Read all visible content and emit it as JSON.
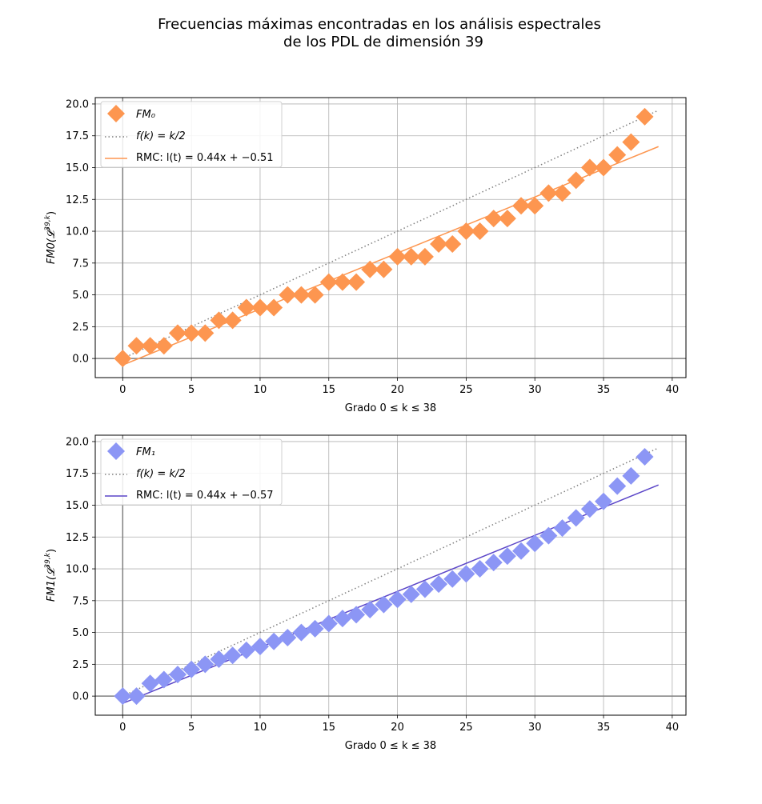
{
  "figure": {
    "title_line1": "Frecuencias máximas encontradas en los análisis espectrales",
    "title_line2": "de los PDL de dimensión 39"
  },
  "chart_data": [
    {
      "type": "scatter",
      "xlabel": "Grado 0 ≤ k ≤ 38",
      "ylabel": "FM0(𝓛^{39,k})",
      "xlim": [
        -2,
        41
      ],
      "ylim": [
        -1.5,
        20.5
      ],
      "xticks": [
        0,
        5,
        10,
        15,
        20,
        25,
        30,
        35,
        40
      ],
      "yticks": [
        0.0,
        2.5,
        5.0,
        7.5,
        10.0,
        12.5,
        15.0,
        17.5,
        20.0
      ],
      "ytick_labels": [
        "0.0",
        "2.5",
        "5.0",
        "7.5",
        "10.0",
        "12.5",
        "15.0",
        "17.5",
        "20.0"
      ],
      "grid": true,
      "legend_position": "top-left",
      "series": [
        {
          "name": "FM₀",
          "kind": "scatter",
          "marker": "diamond",
          "color": "#fd9650",
          "x": [
            0,
            1,
            2,
            3,
            4,
            5,
            6,
            7,
            8,
            9,
            10,
            11,
            12,
            13,
            14,
            15,
            16,
            17,
            18,
            19,
            20,
            21,
            22,
            23,
            24,
            25,
            26,
            27,
            28,
            29,
            30,
            31,
            32,
            33,
            34,
            35,
            36,
            37,
            38
          ],
          "y": [
            0,
            1,
            1,
            1,
            2,
            2,
            2,
            3,
            3,
            4,
            4,
            4,
            5,
            5,
            5,
            6,
            6,
            6,
            7,
            7,
            8,
            8,
            8,
            9,
            9,
            10,
            10,
            11,
            11,
            12,
            12,
            13,
            13,
            14,
            15,
            15,
            16,
            17,
            19
          ]
        },
        {
          "name": "f(k) = k/2",
          "kind": "line",
          "style": "dotted",
          "color": "#808080",
          "x": [
            0,
            39
          ],
          "y": [
            0,
            19.5
          ]
        },
        {
          "name": "RMC: l(t) = 0.44x + −0.51",
          "kind": "line",
          "style": "solid",
          "color": "#fd9650",
          "x": [
            0,
            39
          ],
          "y": [
            -0.51,
            16.65
          ]
        }
      ]
    },
    {
      "type": "scatter",
      "xlabel": "Grado 0 ≤ k ≤ 38",
      "ylabel": "FM1(𝓛^{39,k})",
      "xlim": [
        -2,
        41
      ],
      "ylim": [
        -1.5,
        20.5
      ],
      "xticks": [
        0,
        5,
        10,
        15,
        20,
        25,
        30,
        35,
        40
      ],
      "yticks": [
        0.0,
        2.5,
        5.0,
        7.5,
        10.0,
        12.5,
        15.0,
        17.5,
        20.0
      ],
      "ytick_labels": [
        "0.0",
        "2.5",
        "5.0",
        "7.5",
        "10.0",
        "12.5",
        "15.0",
        "17.5",
        "20.0"
      ],
      "grid": true,
      "legend_position": "top-left",
      "series": [
        {
          "name": "FM₁",
          "kind": "scatter",
          "marker": "diamond",
          "color": "#8c96f5",
          "x": [
            0,
            1,
            2,
            3,
            4,
            5,
            6,
            7,
            8,
            9,
            10,
            11,
            12,
            13,
            14,
            15,
            16,
            17,
            18,
            19,
            20,
            21,
            22,
            23,
            24,
            25,
            26,
            27,
            28,
            29,
            30,
            31,
            32,
            33,
            34,
            35,
            36,
            37,
            38
          ],
          "y": [
            0,
            0,
            1,
            1.3,
            1.7,
            2.1,
            2.5,
            2.9,
            3.2,
            3.6,
            3.9,
            4.3,
            4.6,
            5.0,
            5.3,
            5.7,
            6.1,
            6.4,
            6.8,
            7.2,
            7.6,
            8.0,
            8.4,
            8.8,
            9.2,
            9.6,
            10.0,
            10.5,
            11.0,
            11.4,
            12.0,
            12.6,
            13.2,
            14.0,
            14.7,
            15.3,
            16.5,
            17.3,
            18.8
          ]
        },
        {
          "name": "f(k) = k/2",
          "kind": "line",
          "style": "dotted",
          "color": "#808080",
          "x": [
            0,
            39
          ],
          "y": [
            0,
            19.5
          ]
        },
        {
          "name": "RMC: l(t) = 0.44x + −0.57",
          "kind": "line",
          "style": "solid",
          "color": "#5b46c8",
          "x": [
            0,
            39
          ],
          "y": [
            -0.57,
            16.59
          ]
        }
      ]
    }
  ]
}
